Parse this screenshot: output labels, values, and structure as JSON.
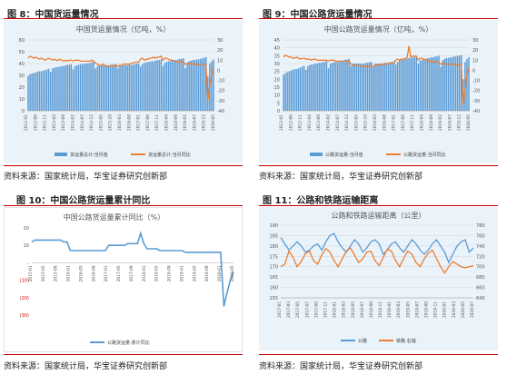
{
  "figures": [
    {
      "title": "图 8：中国货运量情况",
      "source": "资料来源：国家统计局，华宝证券研究创新部"
    },
    {
      "title": "图 9：中国公路货运量情况",
      "source": "资料来源：国家统计局，华宝证券研究创新部"
    },
    {
      "title": "图 10：中国公路货运量累计同比",
      "source": "资料来源：国家统计局，华宝证券研究创新部"
    },
    {
      "title": "图 11：公路和铁路运输距离",
      "source": "资料来源：国家统计局，华宝证券研究创新部"
    }
  ],
  "colors": {
    "bar": "#5b9bd5",
    "line": "#ed7d31",
    "rule": "#c00000",
    "panel_bg": "#eaf3f9"
  },
  "chart_data": [
    {
      "type": "bar+line",
      "title": "中国货运量情况（亿吨，%）",
      "x_tick_labels": [
        "2012-01",
        "2012-06",
        "2012-11",
        "2013-04",
        "2013-09",
        "2014-02",
        "2014-07",
        "2014-12",
        "2015-05",
        "2015-10",
        "2016-03",
        "2016-08",
        "2017-01",
        "2017-06",
        "2017-11",
        "2018-04",
        "2018-09",
        "2019-02",
        "2019-07",
        "2019-12",
        "2020-05"
      ],
      "y_left": {
        "ylim": [
          0,
          60
        ],
        "ticks": [
          "0",
          "10",
          "20",
          "30",
          "40",
          "50",
          "60"
        ]
      },
      "y_right": {
        "ylim": [
          -40,
          30
        ],
        "ticks": [
          "-40",
          "-30",
          "-20",
          "-10",
          "0",
          "10",
          "20",
          "30"
        ]
      },
      "series": [
        {
          "name": "货运量总计:当月值",
          "axis": "left",
          "type": "bar",
          "summary": "rises from ~30 to ~45 with Feb dips, ~30 in 2020-02, then recovering to ~45"
        },
        {
          "name": "货运量总计:当月同比",
          "axis": "right",
          "type": "line",
          "summary": "mostly 5-15, dips near 0 in 2015-2016, drops to about -30 in 2020-02 then recovers to ~5"
        }
      ],
      "bars": [
        29.5,
        31,
        31.5,
        32,
        32.5,
        33,
        33.5,
        33.5,
        34,
        34.5,
        35,
        35.5,
        33,
        36,
        36.5,
        37,
        37,
        37.5,
        38,
        38,
        38.5,
        39,
        39,
        39.5,
        35,
        38,
        38.5,
        39,
        39.5,
        39.5,
        40,
        40,
        40.5,
        40.5,
        41,
        41.5,
        36,
        38,
        38.5,
        38.5,
        38.5,
        38.5,
        38.5,
        38.5,
        39,
        39,
        39.5,
        39.5,
        36,
        38.5,
        38.5,
        38.5,
        38.5,
        38.5,
        39,
        39,
        39,
        39.5,
        40,
        40,
        37.5,
        39.5,
        40.5,
        41,
        41.5,
        41.5,
        42,
        42,
        42.5,
        43,
        43,
        43.5,
        38,
        40.5,
        41.5,
        42,
        42,
        42.5,
        43,
        43,
        43.5,
        44,
        44,
        44.5,
        36,
        41,
        42,
        42.5,
        43,
        43,
        43.5,
        43.5,
        44,
        44.5,
        45,
        45.5,
        29,
        40,
        42,
        43.5
      ],
      "line": [
        12,
        14,
        13,
        12,
        13,
        12,
        11,
        12,
        11,
        10,
        11,
        12,
        11,
        10,
        11,
        10,
        10,
        11,
        10,
        9,
        10,
        9,
        10,
        10,
        9,
        10,
        10,
        10,
        9,
        9,
        9,
        9,
        9,
        9,
        10,
        9,
        7,
        6,
        5,
        5,
        6,
        5,
        4,
        4,
        4,
        5,
        4,
        5,
        4,
        5,
        5,
        6,
        6,
        6,
        6,
        7,
        7,
        8,
        8,
        8,
        11,
        12,
        10,
        11,
        11,
        12,
        12,
        13,
        12,
        13,
        13,
        14,
        10,
        12,
        12,
        11,
        10,
        10,
        9,
        9,
        8,
        8,
        9,
        8,
        6,
        6,
        7,
        7,
        6,
        6,
        6,
        6,
        5,
        5,
        6,
        5,
        -30,
        -15,
        -5,
        3
      ]
    },
    {
      "type": "bar+line",
      "title": "中国公路货运量情况（亿吨，%）",
      "x_tick_labels": [
        "2012-01",
        "2012-06",
        "2012-11",
        "2013-04",
        "2013-09",
        "2014-02",
        "2014-07",
        "2014-12",
        "2015-05",
        "2015-10",
        "2016-03",
        "2016-08",
        "2017-01",
        "2017-06",
        "2017-11",
        "2018-04",
        "2018-09",
        "2019-02",
        "2019-07",
        "2019-12",
        "2020-05"
      ],
      "y_left": {
        "ylim": [
          0,
          45
        ],
        "ticks": [
          "0",
          "5",
          "10",
          "15",
          "20",
          "25",
          "30",
          "35",
          "40",
          "45"
        ]
      },
      "y_right": {
        "ylim": [
          -40,
          30
        ],
        "ticks": [
          "-40",
          "-30",
          "-20",
          "-10",
          "0",
          "10",
          "20",
          "30"
        ]
      },
      "series": [
        {
          "name": "公路货运量:当月值",
          "axis": "left",
          "type": "bar",
          "summary": "rises from ~24 to ~35, drops to ~20 in 2020-02 then recovers"
        },
        {
          "name": "公路货运量:当月同比",
          "axis": "right",
          "type": "line",
          "summary": "mostly 5-15, spike to ~25 in 2017, falls to about -35 in 2020-02 then rebounds"
        }
      ],
      "bars": [
        23,
        24,
        24.5,
        25,
        25.5,
        26,
        26.5,
        26.5,
        27,
        27.5,
        28,
        28.5,
        26,
        28.5,
        29,
        29.5,
        29.5,
        30,
        30,
        30.5,
        30.5,
        31,
        31,
        31.5,
        27,
        30,
        30.5,
        31,
        31,
        31.5,
        31.5,
        32,
        32,
        32.5,
        32.5,
        33,
        28.5,
        30,
        30,
        30,
        30,
        30,
        30,
        30,
        30.5,
        30.5,
        31,
        31,
        28,
        30,
        30,
        30,
        30,
        30,
        30.5,
        30.5,
        30.5,
        31,
        31,
        31.5,
        29.5,
        31,
        32,
        32.5,
        32.5,
        33,
        33,
        33.5,
        33.5,
        34,
        34,
        34.5,
        30,
        32,
        32.5,
        33,
        33,
        33.5,
        33.5,
        34,
        34,
        34.5,
        34.5,
        35,
        28,
        32,
        33,
        33.5,
        33.5,
        34,
        34,
        34.5,
        34.5,
        35,
        35,
        35.5,
        20,
        31,
        33,
        34
      ],
      "line": [
        13,
        15,
        14,
        13,
        13,
        12,
        12,
        13,
        12,
        11,
        12,
        12,
        11,
        11,
        11,
        10,
        11,
        11,
        10,
        10,
        10,
        10,
        10,
        10,
        9,
        10,
        10,
        10,
        9,
        9,
        9,
        9,
        9,
        9,
        9,
        9,
        6,
        5,
        5,
        5,
        5,
        4,
        4,
        4,
        4,
        4,
        4,
        4,
        4,
        5,
        5,
        5,
        6,
        6,
        6,
        6,
        7,
        7,
        7,
        7,
        10,
        11,
        10,
        11,
        11,
        12,
        12,
        24,
        13,
        14,
        14,
        14,
        10,
        12,
        12,
        11,
        10,
        10,
        9,
        9,
        8,
        8,
        9,
        8,
        6,
        6,
        7,
        6,
        6,
        6,
        6,
        6,
        5,
        5,
        6,
        5,
        -35,
        -20,
        -5,
        3
      ]
    },
    {
      "type": "line",
      "title": "中国公路货运量累计同比（%）",
      "x_tick_labels": [
        "2015-01",
        "2015-05",
        "2015-09",
        "2016-01",
        "2016-05",
        "2016-09",
        "2017-01",
        "2017-05",
        "2017-09",
        "2018-01",
        "2018-05",
        "2018-09",
        "2019-01",
        "2019-05",
        "2019-09",
        "2020-01",
        "2020-05"
      ],
      "y_tick_labels": [
        "(30)",
        "(20)",
        "(10)",
        "-",
        "10",
        "20"
      ],
      "ylim": [
        -30,
        20
      ],
      "series": [
        {
          "name": "公路货运量:累计同比",
          "summary": "~12 in 2015, ~7 through 2016, ~10 in 2017 with spike to ~17, ~7 in 2018-2019, plunge to about -25 in 2020-02 then recovering to about -5"
        }
      ],
      "line": [
        12,
        13,
        13,
        13,
        13,
        13,
        13,
        13,
        13,
        13,
        12,
        12,
        7,
        7,
        7,
        7,
        7,
        7,
        7,
        7,
        7,
        7,
        7,
        7,
        10,
        10,
        10,
        10,
        10,
        10,
        11,
        11,
        11,
        11,
        17,
        11,
        8,
        8,
        8,
        8,
        7,
        7,
        7,
        7,
        7,
        7,
        7,
        7,
        6,
        6,
        6,
        6,
        6,
        6,
        6,
        6,
        6,
        6,
        6,
        6,
        -25,
        -17,
        -10,
        -5
      ]
    },
    {
      "type": "line",
      "title": "公路和铁路运输距离（公里）",
      "x_tick_labels": [
        "2017-01",
        "2017-03",
        "2017-05",
        "2017-07",
        "2017-09",
        "2017-11",
        "2018-01",
        "2018-03",
        "2018-05",
        "2018-07",
        "2018-09",
        "2018-11",
        "2019-01",
        "2019-03",
        "2019-05",
        "2019-07",
        "2019-09",
        "2019-11",
        "2020-01",
        "2020-03",
        "2020-05",
        "2020-07"
      ],
      "y_left": {
        "ylim": [
          155,
          190
        ],
        "ticks": [
          "155",
          "160",
          "165",
          "170",
          "175",
          "180",
          "185",
          "190"
        ]
      },
      "y_right": {
        "ylim": [
          640,
          780
        ],
        "ticks": [
          "640",
          "660",
          "680",
          "700",
          "720",
          "740",
          "760",
          "780"
        ]
      },
      "series": [
        {
          "name": "公路",
          "axis": "left",
          "summary": "fluctuates between ~172 and ~187"
        },
        {
          "name": "铁路（右轴）",
          "axis": "right",
          "summary": "fluctuates between ~680 and ~740"
        }
      ],
      "legend": [
        "公路",
        "铁路  右轴"
      ],
      "highway": [
        184,
        181,
        178,
        180,
        182,
        180,
        177,
        178,
        180,
        181,
        178,
        182,
        185,
        186,
        182,
        179,
        177,
        180,
        183,
        181,
        177,
        179,
        182,
        183,
        181,
        176,
        178,
        181,
        182,
        179,
        177,
        180,
        183,
        181,
        178,
        176,
        178,
        181,
        183,
        180,
        177,
        172,
        176,
        180,
        182,
        183,
        177,
        179
      ],
      "railway": [
        700,
        705,
        730,
        718,
        700,
        710,
        725,
        730,
        712,
        705,
        722,
        735,
        728,
        712,
        700,
        715,
        730,
        736,
        722,
        708,
        715,
        728,
        730,
        712,
        702,
        718,
        734,
        730,
        712,
        700,
        716,
        730,
        724,
        708,
        700,
        715,
        726,
        732,
        716,
        700,
        688,
        700,
        710,
        705,
        700,
        698,
        700,
        702
      ]
    }
  ]
}
